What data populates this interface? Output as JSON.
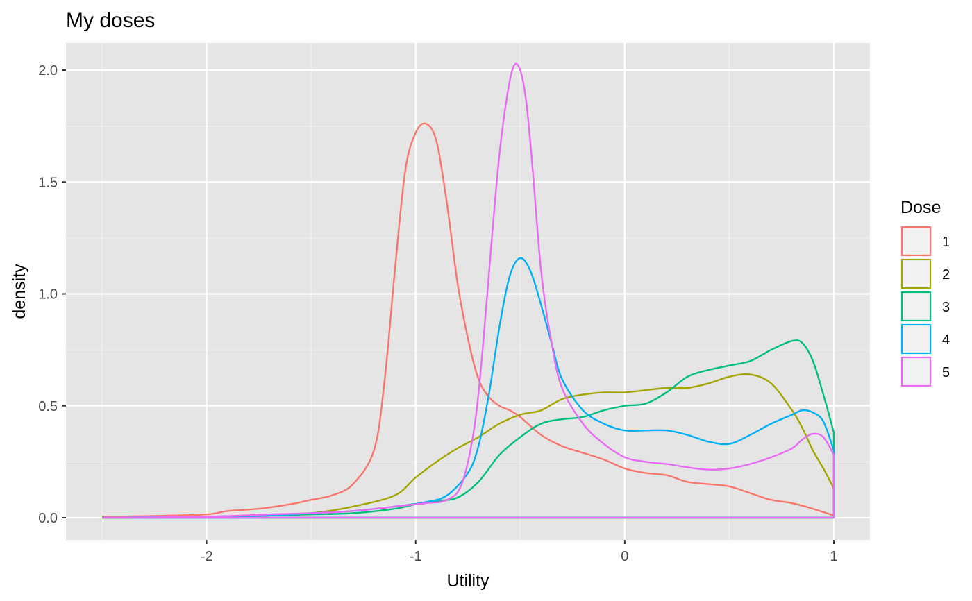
{
  "chart_data": {
    "type": "line",
    "subtype": "density",
    "title": "My doses",
    "xlabel": "Utility",
    "ylabel": "density",
    "xlim": [
      -2.5,
      1.0
    ],
    "ylim": [
      0,
      2.05
    ],
    "x_ticks": [
      -2,
      -1,
      0,
      1
    ],
    "x_tick_labels": [
      "-2",
      "-1",
      "0",
      "1"
    ],
    "y_ticks": [
      0,
      0.5,
      1.0,
      1.5,
      2.0
    ],
    "y_tick_labels": [
      "0.0",
      "0.5",
      "1.0",
      "1.5",
      "2.0"
    ],
    "grid": true,
    "legend": {
      "title": "Dose",
      "position": "right"
    },
    "series": [
      {
        "name": "1",
        "color": "#F8766D",
        "points": [
          [
            -2.5,
            0.005
          ],
          [
            -2.25,
            0.008
          ],
          [
            -2.0,
            0.015
          ],
          [
            -1.9,
            0.03
          ],
          [
            -1.75,
            0.04
          ],
          [
            -1.6,
            0.06
          ],
          [
            -1.5,
            0.08
          ],
          [
            -1.4,
            0.1
          ],
          [
            -1.3,
            0.15
          ],
          [
            -1.2,
            0.3
          ],
          [
            -1.15,
            0.6
          ],
          [
            -1.1,
            1.1
          ],
          [
            -1.05,
            1.55
          ],
          [
            -1.0,
            1.72
          ],
          [
            -0.95,
            1.76
          ],
          [
            -0.9,
            1.68
          ],
          [
            -0.85,
            1.4
          ],
          [
            -0.8,
            1.05
          ],
          [
            -0.75,
            0.8
          ],
          [
            -0.7,
            0.62
          ],
          [
            -0.65,
            0.54
          ],
          [
            -0.6,
            0.5
          ],
          [
            -0.55,
            0.48
          ],
          [
            -0.5,
            0.45
          ],
          [
            -0.4,
            0.37
          ],
          [
            -0.3,
            0.32
          ],
          [
            -0.2,
            0.29
          ],
          [
            -0.1,
            0.26
          ],
          [
            0.0,
            0.22
          ],
          [
            0.1,
            0.2
          ],
          [
            0.2,
            0.19
          ],
          [
            0.3,
            0.16
          ],
          [
            0.4,
            0.15
          ],
          [
            0.5,
            0.14
          ],
          [
            0.6,
            0.11
          ],
          [
            0.7,
            0.08
          ],
          [
            0.8,
            0.065
          ],
          [
            0.9,
            0.04
          ],
          [
            1.0,
            0.01
          ]
        ]
      },
      {
        "name": "2",
        "color": "#A3A500",
        "points": [
          [
            -2.5,
            0.0
          ],
          [
            -2.0,
            0.005
          ],
          [
            -1.7,
            0.01
          ],
          [
            -1.5,
            0.02
          ],
          [
            -1.3,
            0.05
          ],
          [
            -1.1,
            0.1
          ],
          [
            -1.0,
            0.18
          ],
          [
            -0.9,
            0.25
          ],
          [
            -0.8,
            0.31
          ],
          [
            -0.7,
            0.36
          ],
          [
            -0.6,
            0.42
          ],
          [
            -0.5,
            0.46
          ],
          [
            -0.4,
            0.48
          ],
          [
            -0.3,
            0.53
          ],
          [
            -0.2,
            0.55
          ],
          [
            -0.1,
            0.56
          ],
          [
            0.0,
            0.56
          ],
          [
            0.1,
            0.57
          ],
          [
            0.2,
            0.58
          ],
          [
            0.3,
            0.58
          ],
          [
            0.4,
            0.6
          ],
          [
            0.5,
            0.63
          ],
          [
            0.6,
            0.64
          ],
          [
            0.7,
            0.6
          ],
          [
            0.8,
            0.48
          ],
          [
            0.85,
            0.4
          ],
          [
            0.9,
            0.3
          ],
          [
            0.95,
            0.22
          ],
          [
            1.0,
            0.13
          ]
        ]
      },
      {
        "name": "3",
        "color": "#00BF7D",
        "points": [
          [
            -2.5,
            0.0
          ],
          [
            -2.0,
            0.005
          ],
          [
            -1.7,
            0.01
          ],
          [
            -1.5,
            0.015
          ],
          [
            -1.3,
            0.02
          ],
          [
            -1.1,
            0.04
          ],
          [
            -1.0,
            0.06
          ],
          [
            -0.9,
            0.075
          ],
          [
            -0.8,
            0.09
          ],
          [
            -0.7,
            0.16
          ],
          [
            -0.6,
            0.28
          ],
          [
            -0.5,
            0.36
          ],
          [
            -0.4,
            0.42
          ],
          [
            -0.3,
            0.44
          ],
          [
            -0.2,
            0.45
          ],
          [
            -0.1,
            0.48
          ],
          [
            0.0,
            0.5
          ],
          [
            0.1,
            0.51
          ],
          [
            0.2,
            0.56
          ],
          [
            0.3,
            0.63
          ],
          [
            0.4,
            0.66
          ],
          [
            0.5,
            0.68
          ],
          [
            0.6,
            0.7
          ],
          [
            0.7,
            0.75
          ],
          [
            0.8,
            0.79
          ],
          [
            0.85,
            0.78
          ],
          [
            0.9,
            0.7
          ],
          [
            0.95,
            0.55
          ],
          [
            1.0,
            0.38
          ]
        ]
      },
      {
        "name": "4",
        "color": "#00B0F6",
        "points": [
          [
            -2.5,
            0.0
          ],
          [
            -2.0,
            0.005
          ],
          [
            -1.7,
            0.01
          ],
          [
            -1.5,
            0.02
          ],
          [
            -1.3,
            0.03
          ],
          [
            -1.1,
            0.05
          ],
          [
            -0.95,
            0.07
          ],
          [
            -0.85,
            0.1
          ],
          [
            -0.75,
            0.2
          ],
          [
            -0.7,
            0.32
          ],
          [
            -0.65,
            0.55
          ],
          [
            -0.6,
            0.85
          ],
          [
            -0.55,
            1.08
          ],
          [
            -0.5,
            1.16
          ],
          [
            -0.45,
            1.1
          ],
          [
            -0.4,
            0.95
          ],
          [
            -0.35,
            0.78
          ],
          [
            -0.3,
            0.62
          ],
          [
            -0.2,
            0.48
          ],
          [
            -0.1,
            0.42
          ],
          [
            0.0,
            0.39
          ],
          [
            0.1,
            0.39
          ],
          [
            0.2,
            0.39
          ],
          [
            0.3,
            0.37
          ],
          [
            0.4,
            0.34
          ],
          [
            0.5,
            0.33
          ],
          [
            0.6,
            0.37
          ],
          [
            0.7,
            0.42
          ],
          [
            0.8,
            0.46
          ],
          [
            0.85,
            0.48
          ],
          [
            0.9,
            0.47
          ],
          [
            0.95,
            0.43
          ],
          [
            1.0,
            0.3
          ]
        ]
      },
      {
        "name": "5",
        "color": "#E76BF3",
        "points": [
          [
            -2.5,
            0.0
          ],
          [
            -2.0,
            0.005
          ],
          [
            -1.7,
            0.015
          ],
          [
            -1.5,
            0.02
          ],
          [
            -1.3,
            0.03
          ],
          [
            -1.1,
            0.05
          ],
          [
            -0.95,
            0.065
          ],
          [
            -0.85,
            0.08
          ],
          [
            -0.78,
            0.15
          ],
          [
            -0.72,
            0.4
          ],
          [
            -0.68,
            0.75
          ],
          [
            -0.64,
            1.2
          ],
          [
            -0.6,
            1.62
          ],
          [
            -0.56,
            1.9
          ],
          [
            -0.53,
            2.02
          ],
          [
            -0.5,
            2.0
          ],
          [
            -0.47,
            1.85
          ],
          [
            -0.44,
            1.55
          ],
          [
            -0.4,
            1.1
          ],
          [
            -0.35,
            0.78
          ],
          [
            -0.3,
            0.58
          ],
          [
            -0.2,
            0.42
          ],
          [
            -0.1,
            0.33
          ],
          [
            0.0,
            0.27
          ],
          [
            0.1,
            0.25
          ],
          [
            0.2,
            0.24
          ],
          [
            0.3,
            0.225
          ],
          [
            0.4,
            0.215
          ],
          [
            0.5,
            0.22
          ],
          [
            0.6,
            0.24
          ],
          [
            0.7,
            0.27
          ],
          [
            0.8,
            0.31
          ],
          [
            0.85,
            0.35
          ],
          [
            0.9,
            0.375
          ],
          [
            0.95,
            0.36
          ],
          [
            1.0,
            0.28
          ]
        ]
      }
    ]
  },
  "colors": {
    "panel_background": "#E5E5E5",
    "grid_major": "#FFFFFF",
    "grid_minor": "#F2F2F2",
    "tick_text": "#4D4D4D"
  }
}
